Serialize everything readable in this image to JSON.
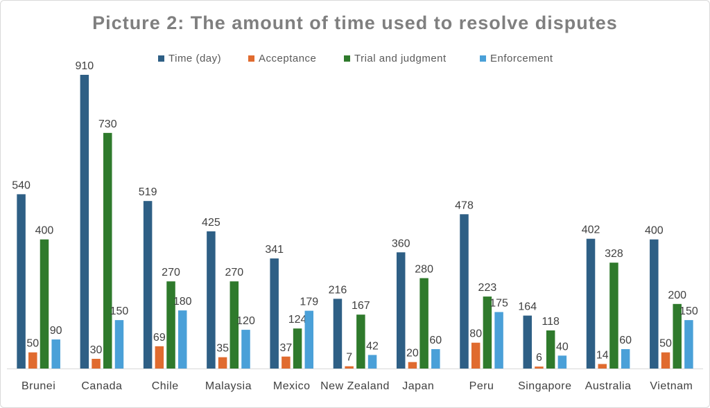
{
  "chart_data": {
    "type": "bar",
    "title": "Picture 2: The amount of time used to resolve disputes",
    "xlabel": "",
    "ylabel": "",
    "ylim": [
      0,
      1000
    ],
    "legend_position": "top",
    "grid": false,
    "categories": [
      "Brunei",
      "Canada",
      "Chile",
      "Malaysia",
      "Mexico",
      "New Zealand",
      "Japan",
      "Peru",
      "Singapore",
      "Australia",
      "Vietnam"
    ],
    "series": [
      {
        "name": "Time (day)",
        "color": "#2e5f85",
        "values": [
          540,
          910,
          519,
          425,
          341,
          216,
          360,
          478,
          164,
          402,
          400
        ]
      },
      {
        "name": "Acceptance",
        "color": "#e06b2f",
        "values": [
          50,
          30,
          69,
          35,
          37,
          7,
          20,
          80,
          6,
          14,
          50
        ]
      },
      {
        "name": "Trial and judgment",
        "color": "#2f7a2c",
        "values": [
          400,
          730,
          270,
          270,
          124,
          167,
          280,
          223,
          118,
          328,
          200
        ]
      },
      {
        "name": "Enforcement",
        "color": "#4aa0d8",
        "values": [
          90,
          150,
          180,
          120,
          179,
          42,
          60,
          175,
          40,
          60,
          150
        ]
      }
    ]
  }
}
